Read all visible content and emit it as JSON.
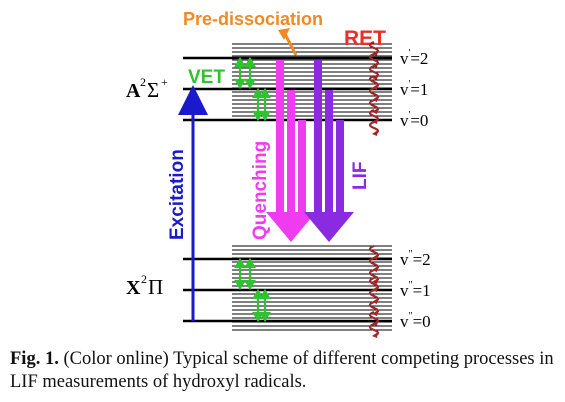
{
  "diagram": {
    "title_predissociation": "Pre-dissociation",
    "label_ret": "RET",
    "label_vet": "VET",
    "label_excitation": "Excitation",
    "label_quenching": "Quenching",
    "label_lif": "LIF",
    "state_upper_main": "A",
    "state_upper_sup": "2",
    "state_upper_sym": "Σ",
    "state_upper_plus": "+",
    "state_lower_main": "X",
    "state_lower_sup": "2",
    "state_lower_sym": "Π",
    "upper_levels": [
      {
        "v": "v",
        "prime": "'",
        "value": "=2"
      },
      {
        "v": "v",
        "prime": "'",
        "value": "=1"
      },
      {
        "v": "v",
        "prime": "'",
        "value": "=0"
      }
    ],
    "lower_levels": [
      {
        "v": "v",
        "prime": "\"",
        "value": "=2"
      },
      {
        "v": "v",
        "prime": "\"",
        "value": "=1"
      },
      {
        "v": "v",
        "prime": "\"",
        "value": "=0"
      }
    ],
    "colors": {
      "predissociation": "#f08a24",
      "ret": "#e8302a",
      "vet": "#2fc42f",
      "excitation": "#1a1acc",
      "quenching": "#f03cf0",
      "lif": "#8a2be2",
      "wave": "#a0282a"
    }
  },
  "caption": {
    "label": "Fig. 1.",
    "text": " (Color online) Typical scheme of different competing processes in LIF measurements of hydroxyl radicals."
  }
}
